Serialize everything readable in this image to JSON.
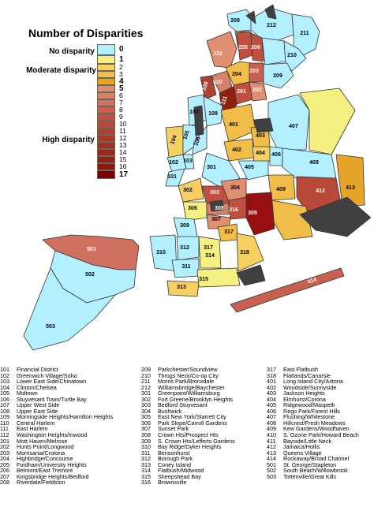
{
  "legend": {
    "title": "Number of Disparities",
    "categories": {
      "none": "No disparity",
      "moderate": "Moderate disparity",
      "high": "High disparity"
    },
    "ticks": [
      "0",
      "1",
      "2",
      "3",
      "4",
      "5",
      "6",
      "7",
      "8",
      "9",
      "10",
      "11",
      "12",
      "13",
      "14",
      "15",
      "16",
      "17"
    ],
    "colors": [
      "#b3f0ff",
      "#f5f082",
      "#f5d060",
      "#f0be48",
      "#e6a428",
      "#e09070",
      "#d88068",
      "#d07060",
      "#c86050",
      "#c05040",
      "#b84838",
      "#b04030",
      "#a83828",
      "#a03020",
      "#982818",
      "#902010",
      "#881808",
      "#800000"
    ]
  },
  "map_labels": [
    "208",
    "212",
    "211",
    "112",
    "205",
    "206",
    "210",
    "203",
    "204",
    "110",
    "109",
    "111",
    "201",
    "202",
    "209",
    "107",
    "108",
    "101",
    "102",
    "103",
    "104",
    "105",
    "106",
    "401",
    "403",
    "407",
    "402",
    "406",
    "404",
    "405",
    "301",
    "408",
    "302",
    "303",
    "304",
    "409",
    "412",
    "413",
    "306",
    "308",
    "316",
    "305",
    "307",
    "309",
    "317",
    "310",
    "312",
    "317",
    "311",
    "318",
    "314",
    "315",
    "313",
    "414",
    "501",
    "502",
    "503"
  ],
  "key": {
    "col1": [
      [
        "101",
        "Financial District"
      ],
      [
        "102",
        "Greenwich Village/Soho"
      ],
      [
        "103",
        "Lower East Side/Chinatown"
      ],
      [
        "104",
        "Clinton/Chelsea"
      ],
      [
        "105",
        "Midtown"
      ],
      [
        "106",
        "Stuyvesant Town/Turtle Bay"
      ],
      [
        "107",
        "Upper West Side"
      ],
      [
        "108",
        "Upper East Side"
      ],
      [
        "109",
        "Morningside Heights/Hamilton Heights"
      ],
      [
        "110",
        "Central Harlem"
      ],
      [
        "111",
        "East Harlem"
      ],
      [
        "112",
        "Washington Heights/Inwood"
      ],
      [
        "201",
        "Mott Haven/Melrose"
      ],
      [
        "202",
        "Hunts Point/Longwood"
      ],
      [
        "203",
        "Morrisania/Crotona"
      ],
      [
        "204",
        "Highbridge/Concourse"
      ],
      [
        "205",
        "Fordham/University Heights"
      ],
      [
        "206",
        "Belmont/East Tremont"
      ],
      [
        "207",
        "Kingsbridge Heights/Bedford"
      ],
      [
        "208",
        "Riverdale/Fieldston"
      ]
    ],
    "col2": [
      [
        "209",
        "Parkchester/Soundview"
      ],
      [
        "210",
        "Throgs Neck/Co-op City"
      ],
      [
        "211",
        "Morris Park/Bronxdale"
      ],
      [
        "212",
        "Williamsbridge/Baychester"
      ],
      [
        "301",
        "Greenpoint/Williamsburg"
      ],
      [
        "302",
        "Fort Greene/Brooklyn Heights"
      ],
      [
        "303",
        "Bedford Stuyvesant"
      ],
      [
        "304",
        "Bushwick"
      ],
      [
        "305",
        "East New York/Starrett City"
      ],
      [
        "306",
        "Park Slope/Carroll Gardens"
      ],
      [
        "307",
        "Sunset Park"
      ],
      [
        "308",
        "Crown Hts/Prospect Hts"
      ],
      [
        "309",
        "S. Crown Hts/Lefferts Gardens"
      ],
      [
        "310",
        "Bay Ridge/Dyker Heights"
      ],
      [
        "311",
        "Bensonhurst"
      ],
      [
        "312",
        "Borough Park"
      ],
      [
        "313",
        "Coney Island"
      ],
      [
        "314",
        "Flatbush/Midwood"
      ],
      [
        "315",
        "Sheepshead Bay"
      ],
      [
        "316",
        "Brownsville"
      ]
    ],
    "col3": [
      [
        "317",
        "East Flatbush"
      ],
      [
        "318",
        "Flatlands/Canarsie"
      ],
      [
        "401",
        "Long Island City/Astoria"
      ],
      [
        "402",
        "Woodside/Sunnyside"
      ],
      [
        "403",
        "Jackson Heights"
      ],
      [
        "404",
        "Elmhurst/Corona"
      ],
      [
        "405",
        "Ridgewood/Maspeth"
      ],
      [
        "406",
        "Rego Park/Forest Hills"
      ],
      [
        "407",
        "Flushing/Whitestone"
      ],
      [
        "408",
        "Hillcrest/Fresh Meadows"
      ],
      [
        "409",
        "Kew Gardens/Woodhaven"
      ],
      [
        "410",
        "S. Ozone Park/Howard Beach"
      ],
      [
        "411",
        "Bayside/Little Neck"
      ],
      [
        "412",
        "Jamaica/Hollis"
      ],
      [
        "413",
        "Queens Village"
      ],
      [
        "414",
        "Rockaway/Broad Channel"
      ],
      [
        "501",
        "St. George/Stapleton"
      ],
      [
        "502",
        "South Beach/Willowbrook"
      ],
      [
        "503",
        "Tottenville/Great Kills"
      ]
    ]
  }
}
